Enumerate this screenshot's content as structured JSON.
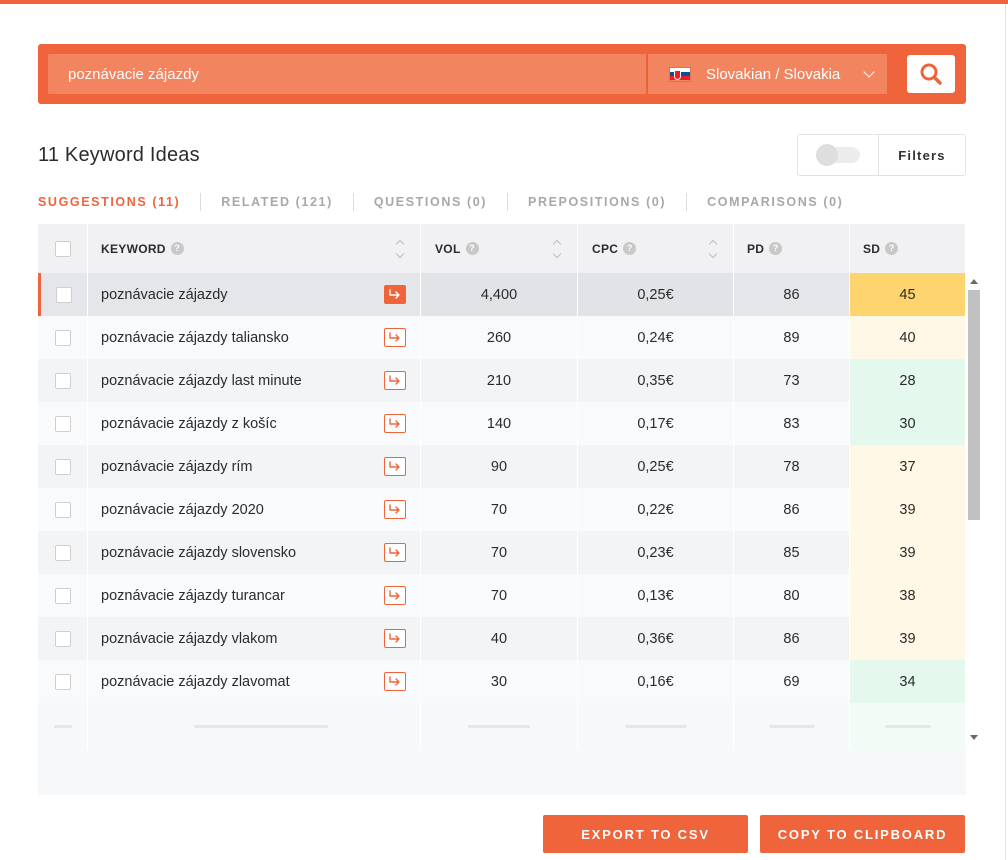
{
  "search": {
    "query": "poznávacie zájazdy",
    "language": "Slovakian / Slovakia",
    "flag_icon": "slovakia-flag-icon",
    "search_icon": "search-icon"
  },
  "results": {
    "title": "11 Keyword Ideas",
    "filters_label": "Filters"
  },
  "tabs": [
    {
      "label": "SUGGESTIONS (11)",
      "active": true
    },
    {
      "label": "RELATED (121)",
      "active": false
    },
    {
      "label": "QUESTIONS (0)",
      "active": false
    },
    {
      "label": "PREPOSITIONS (0)",
      "active": false
    },
    {
      "label": "COMPARISONS (0)",
      "active": false
    }
  ],
  "table": {
    "headers": {
      "keyword": "KEYWORD",
      "vol": "VOL",
      "cpc": "CPC",
      "pd": "PD",
      "sd": "SD"
    },
    "rows": [
      {
        "keyword": "poznávacie zájazdy",
        "vol": "4,400",
        "cpc": "0,25€",
        "pd": "86",
        "sd": "45"
      },
      {
        "keyword": "poznávacie zájazdy taliansko",
        "vol": "260",
        "cpc": "0,24€",
        "pd": "89",
        "sd": "40"
      },
      {
        "keyword": "poznávacie zájazdy last minute",
        "vol": "210",
        "cpc": "0,35€",
        "pd": "73",
        "sd": "28"
      },
      {
        "keyword": "poznávacie zájazdy z košíc",
        "vol": "140",
        "cpc": "0,17€",
        "pd": "83",
        "sd": "30"
      },
      {
        "keyword": "poznávacie zájazdy rím",
        "vol": "90",
        "cpc": "0,25€",
        "pd": "78",
        "sd": "37"
      },
      {
        "keyword": "poznávacie zájazdy 2020",
        "vol": "70",
        "cpc": "0,22€",
        "pd": "86",
        "sd": "39"
      },
      {
        "keyword": "poznávacie zájazdy slovensko",
        "vol": "70",
        "cpc": "0,23€",
        "pd": "85",
        "sd": "39"
      },
      {
        "keyword": "poznávacie zájazdy turancar",
        "vol": "70",
        "cpc": "0,13€",
        "pd": "80",
        "sd": "38"
      },
      {
        "keyword": "poznávacie zájazdy vlakom",
        "vol": "40",
        "cpc": "0,36€",
        "pd": "86",
        "sd": "39"
      },
      {
        "keyword": "poznávacie zájazdy zlavomat",
        "vol": "30",
        "cpc": "0,16€",
        "pd": "69",
        "sd": "34"
      }
    ]
  },
  "colors": {
    "accent": "#f0643c",
    "sd_high": "#fdd46e",
    "sd_medium": "#fff8e7",
    "sd_low": "#e5f8ee"
  },
  "actions": {
    "export_label": "EXPORT TO CSV",
    "copy_label": "COPY TO CLIPBOARD"
  }
}
